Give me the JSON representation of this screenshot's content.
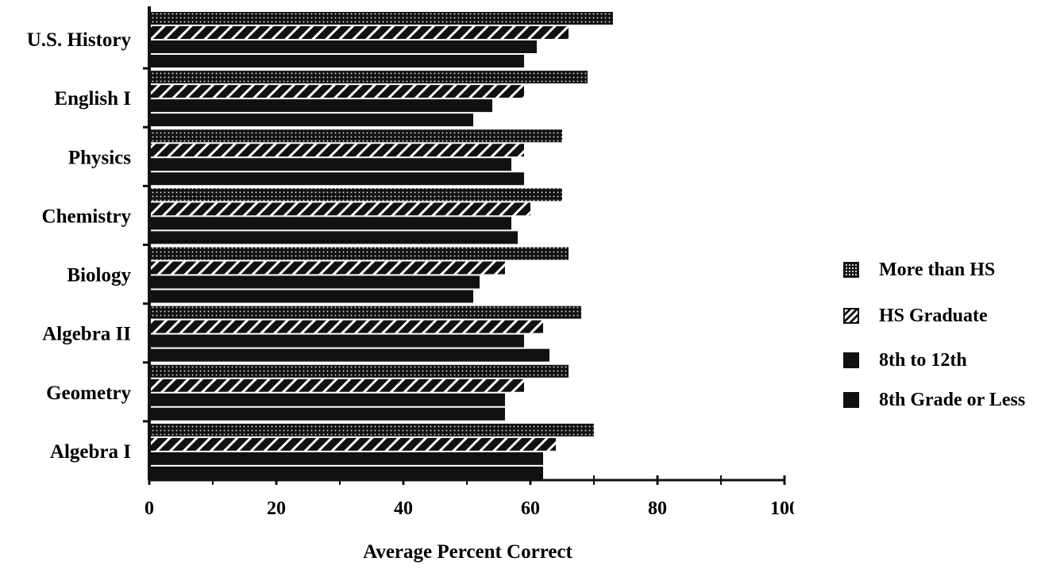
{
  "chart_data": {
    "type": "bar",
    "orientation": "horizontal",
    "title": "",
    "xlabel": "Average Percent Correct",
    "ylabel": "",
    "xlim": [
      0,
      100
    ],
    "xticks": [
      "0",
      "20",
      "40",
      "60",
      "80",
      "100"
    ],
    "categories": [
      "U.S. History",
      "English I",
      "Physics",
      "Chemistry",
      "Biology",
      "Algebra II",
      "Geometry",
      "Algebra I"
    ],
    "series": [
      {
        "name": "More than HS",
        "values": [
          73,
          69,
          65,
          65,
          66,
          68,
          66,
          70
        ]
      },
      {
        "name": "HS Graduate",
        "values": [
          66,
          59,
          59,
          60,
          56,
          62,
          59,
          64
        ]
      },
      {
        "name": "8th to 12th",
        "values": [
          61,
          54,
          57,
          57,
          52,
          59,
          56,
          62
        ]
      },
      {
        "name": "8th Grade or Less",
        "values": [
          59,
          51,
          59,
          58,
          51,
          63,
          56,
          62
        ]
      }
    ],
    "legend_position": "right",
    "colors": {
      "bar": "#111111",
      "hatch_light": "#ffffff",
      "background": "#ffffff"
    }
  },
  "legend": {
    "items": [
      {
        "label": "More than HS",
        "icon": "dotted-swatch-icon"
      },
      {
        "label": "HS Graduate",
        "icon": "hatched-swatch-icon"
      },
      {
        "label": "8th to 12th",
        "icon": "solid-swatch-icon"
      },
      {
        "label": "8th Grade or Less",
        "icon": "solid-swatch-icon"
      }
    ]
  }
}
